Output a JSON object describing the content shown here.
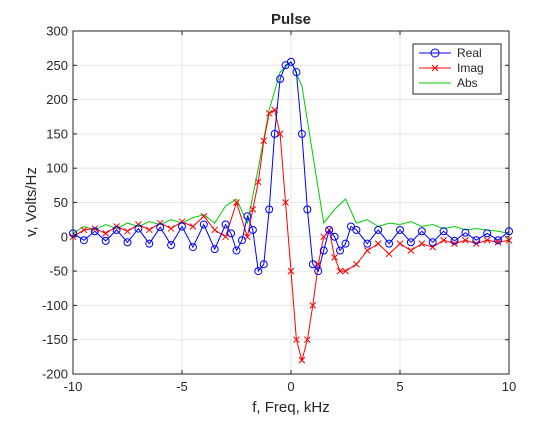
{
  "chart_data": {
    "type": "line",
    "title": "Pulse",
    "xlabel": "f, Freq, kHz",
    "ylabel": "v, Volts/Hz",
    "xlim": [
      -10,
      10
    ],
    "ylim": [
      -200,
      300
    ],
    "xticks": [
      -10,
      -5,
      0,
      5,
      10
    ],
    "yticks": [
      -200,
      -150,
      -100,
      -50,
      0,
      50,
      100,
      150,
      200,
      250,
      300
    ],
    "grid": true,
    "legend": {
      "placement": "top-right",
      "entries": [
        "Real",
        "Imag",
        "Abs"
      ]
    },
    "series": [
      {
        "name": "Real",
        "color": "#0000ff",
        "marker": "circle",
        "x": [
          -10,
          -9.5,
          -9,
          -8.5,
          -8,
          -7.5,
          -7,
          -6.5,
          -6,
          -5.5,
          -5,
          -4.5,
          -4,
          -3.5,
          -3,
          -2.75,
          -2.5,
          -2.25,
          -2,
          -1.75,
          -1.5,
          -1.25,
          -1,
          -0.75,
          -0.5,
          -0.25,
          0,
          0.25,
          0.5,
          0.75,
          1,
          1.25,
          1.5,
          1.75,
          2,
          2.25,
          2.5,
          2.75,
          3,
          3.5,
          4,
          4.5,
          5,
          5.5,
          6,
          6.5,
          7,
          7.5,
          8,
          8.5,
          9,
          9.5,
          10
        ],
        "y": [
          5,
          -5,
          8,
          -6,
          10,
          -8,
          12,
          -10,
          14,
          -12,
          15,
          -15,
          18,
          -18,
          18,
          5,
          -20,
          -5,
          30,
          10,
          -50,
          -40,
          40,
          150,
          230,
          250,
          255,
          240,
          150,
          40,
          -40,
          -50,
          -20,
          10,
          0,
          -20,
          -10,
          15,
          10,
          -10,
          10,
          -10,
          10,
          -8,
          8,
          -8,
          8,
          -6,
          6,
          -5,
          5,
          -5,
          8
        ]
      },
      {
        "name": "Imag",
        "color": "#ff0000",
        "marker": "x",
        "x": [
          -10,
          -9.5,
          -9,
          -8.5,
          -8,
          -7.5,
          -7,
          -6.5,
          -6,
          -5.5,
          -5,
          -4.5,
          -4,
          -3.5,
          -3,
          -2.5,
          -2,
          -1.75,
          -1.5,
          -1.25,
          -1,
          -0.75,
          -0.5,
          -0.25,
          0,
          0.25,
          0.5,
          0.75,
          1,
          1.25,
          1.5,
          1.75,
          2,
          2.25,
          2.5,
          3,
          3.5,
          4,
          4.5,
          5,
          5.5,
          6,
          6.5,
          7,
          7.5,
          8,
          8.5,
          9,
          9.5,
          10
        ],
        "y": [
          0,
          10,
          12,
          5,
          15,
          8,
          18,
          10,
          20,
          12,
          22,
          15,
          30,
          10,
          0,
          50,
          0,
          40,
          80,
          140,
          180,
          185,
          150,
          50,
          -50,
          -150,
          -180,
          -150,
          -100,
          -40,
          0,
          10,
          -30,
          -50,
          -50,
          -40,
          -20,
          -10,
          -25,
          -10,
          -20,
          -10,
          -15,
          -5,
          -10,
          -5,
          -10,
          -5,
          -8,
          -5
        ]
      },
      {
        "name": "Abs",
        "color": "#00cc00",
        "marker": "none",
        "x": [
          -10,
          -9.5,
          -9,
          -8.5,
          -8,
          -7.5,
          -7,
          -6.5,
          -6,
          -5.5,
          -5,
          -4.5,
          -4,
          -3.5,
          -3,
          -2.5,
          -2,
          -1.5,
          -1,
          -0.5,
          0,
          0.5,
          1,
          1.5,
          2,
          2.5,
          3,
          3.5,
          4,
          4.5,
          5,
          5.5,
          6,
          6.5,
          7,
          7.5,
          8,
          8.5,
          9,
          9.5,
          10
        ],
        "y": [
          5,
          15,
          10,
          18,
          12,
          20,
          15,
          22,
          18,
          25,
          20,
          28,
          32,
          20,
          45,
          55,
          20,
          100,
          185,
          240,
          255,
          220,
          120,
          20,
          40,
          55,
          20,
          25,
          15,
          20,
          18,
          22,
          15,
          18,
          12,
          15,
          10,
          12,
          10,
          8,
          5
        ]
      }
    ]
  }
}
